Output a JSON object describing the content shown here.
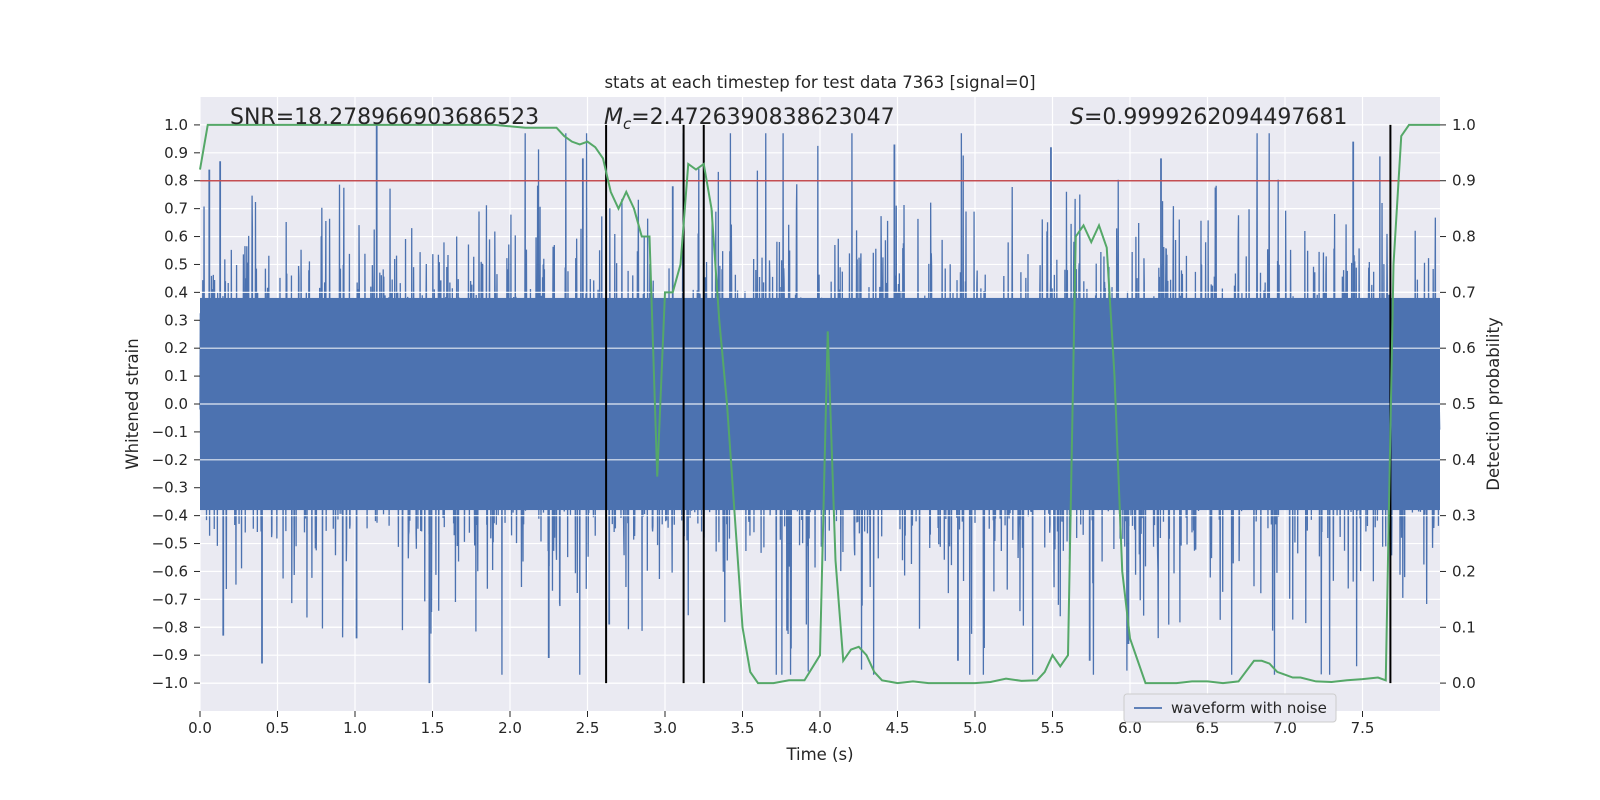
{
  "chart_data": {
    "type": "line",
    "title": "stats at each timestep for test data 7363 [signal=0]",
    "xlabel": "Time (s)",
    "ylabel": "Whitened strain",
    "y2label": "Detection probability",
    "xlim": [
      0.0,
      8.0
    ],
    "ylim": [
      -1.1,
      1.1
    ],
    "y2lim": [
      -0.05,
      1.05
    ],
    "grid": true,
    "x_ticks": [
      0.0,
      0.5,
      1.0,
      1.5,
      2.0,
      2.5,
      3.0,
      3.5,
      4.0,
      4.5,
      5.0,
      5.5,
      6.0,
      6.5,
      7.0,
      7.5
    ],
    "x_tick_labels": [
      "0.0",
      "0.5",
      "1.0",
      "1.5",
      "2.0",
      "2.5",
      "3.0",
      "3.5",
      "4.0",
      "4.5",
      "5.0",
      "5.5",
      "6.0",
      "6.5",
      "7.0",
      "7.5"
    ],
    "y_ticks": [
      1.0,
      0.9,
      0.8,
      0.7,
      0.6,
      0.5,
      0.4,
      0.3,
      0.2,
      0.1,
      0.0,
      -0.1,
      -0.2,
      -0.3,
      -0.4,
      -0.5,
      -0.6,
      -0.7,
      -0.8,
      -0.9,
      -1.0
    ],
    "y_tick_labels": [
      "1.0",
      "0.9",
      "0.8",
      "0.7",
      "0.6",
      "0.5",
      "0.4",
      "0.3",
      "0.2",
      "0.1",
      "0.0",
      "−0.1",
      "−0.2",
      "−0.3",
      "−0.4",
      "−0.5",
      "−0.6",
      "−0.7",
      "−0.8",
      "−0.9",
      "−1.0"
    ],
    "y2_ticks": [
      1.0,
      0.9,
      0.8,
      0.7,
      0.6,
      0.5,
      0.4,
      0.3,
      0.2,
      0.1,
      0.0
    ],
    "y2_tick_labels": [
      "1.0",
      "0.9",
      "0.8",
      "0.7",
      "0.6",
      "0.5",
      "0.4",
      "0.3",
      "0.2",
      "0.1",
      "0.0"
    ],
    "annotations": {
      "snr": "SNR=18.278966903686523",
      "mc_symbol": "M",
      "mc_sub": "c",
      "mc_value": "=2.4726390838623047",
      "s_symbol": "S",
      "s_value": "=0.9999262094497681"
    },
    "threshold": {
      "y2": 0.9,
      "color": "#c44e52"
    },
    "vertical_markers": [
      2.62,
      3.12,
      3.25,
      7.68
    ],
    "waveform": {
      "name": "waveform with noise",
      "color": "#4c72b0",
      "sample_rate_hz": 2048,
      "duration_s": 8.0,
      "note": "dense noise; core band roughly -0.4..0.4, spikes to about +/-1.0",
      "peak_spikes": [
        {
          "t": 1.14,
          "v": 1.0
        },
        {
          "t": 1.48,
          "v": -1.0
        },
        {
          "t": 0.4,
          "v": -0.93
        },
        {
          "t": 7.44,
          "v": 0.94
        },
        {
          "t": 4.48,
          "v": 0.93
        },
        {
          "t": 4.89,
          "v": -0.92
        },
        {
          "t": 0.06,
          "v": 0.84
        },
        {
          "t": 0.13,
          "v": 0.87
        },
        {
          "t": 2.64,
          "v": -0.79
        },
        {
          "t": 5.74,
          "v": -0.92
        },
        {
          "t": 5.99,
          "v": -0.86
        },
        {
          "t": 6.2,
          "v": 0.88
        },
        {
          "t": 2.47,
          "v": 0.88
        },
        {
          "t": 0.15,
          "v": -0.83
        },
        {
          "t": 1.01,
          "v": -0.84
        },
        {
          "t": 2.25,
          "v": -0.91
        },
        {
          "t": 3.05,
          "v": 0.78
        },
        {
          "t": 5.49,
          "v": 0.92
        }
      ]
    },
    "probability": {
      "name": "Detection probability",
      "color": "#55a868",
      "x": [
        0.0,
        0.05,
        0.1,
        0.3,
        0.5,
        0.7,
        0.9,
        1.1,
        1.3,
        1.5,
        1.7,
        1.9,
        2.1,
        2.2,
        2.3,
        2.35,
        2.4,
        2.45,
        2.5,
        2.55,
        2.6,
        2.65,
        2.7,
        2.75,
        2.8,
        2.85,
        2.9,
        2.95,
        3.0,
        3.05,
        3.1,
        3.15,
        3.2,
        3.25,
        3.3,
        3.35,
        3.4,
        3.45,
        3.5,
        3.55,
        3.6,
        3.7,
        3.8,
        3.9,
        4.0,
        4.05,
        4.1,
        4.15,
        4.2,
        4.25,
        4.3,
        4.35,
        4.4,
        4.5,
        4.6,
        4.7,
        4.8,
        4.9,
        5.0,
        5.1,
        5.2,
        5.3,
        5.4,
        5.45,
        5.5,
        5.55,
        5.6,
        5.65,
        5.7,
        5.75,
        5.8,
        5.85,
        5.9,
        5.95,
        6.0,
        6.05,
        6.1,
        6.15,
        6.2,
        6.3,
        6.4,
        6.5,
        6.6,
        6.7,
        6.8,
        6.85,
        6.9,
        6.95,
        7.0,
        7.05,
        7.1,
        7.2,
        7.3,
        7.4,
        7.5,
        7.6,
        7.65,
        7.7,
        7.75,
        7.8,
        7.9,
        8.0
      ],
      "y": [
        0.92,
        1.0,
        1.0,
        1.0,
        1.0,
        1.0,
        1.0,
        1.0,
        1.0,
        1.0,
        1.0,
        1.0,
        0.995,
        0.995,
        0.995,
        0.98,
        0.97,
        0.965,
        0.97,
        0.96,
        0.94,
        0.88,
        0.85,
        0.88,
        0.85,
        0.8,
        0.8,
        0.37,
        0.7,
        0.7,
        0.75,
        0.93,
        0.92,
        0.93,
        0.85,
        0.65,
        0.5,
        0.3,
        0.1,
        0.02,
        0.0,
        0.0,
        0.005,
        0.005,
        0.05,
        0.63,
        0.22,
        0.04,
        0.06,
        0.065,
        0.05,
        0.02,
        0.005,
        0.0,
        0.003,
        0.0,
        0.0,
        0.0,
        0.0,
        0.002,
        0.008,
        0.004,
        0.005,
        0.02,
        0.05,
        0.03,
        0.05,
        0.8,
        0.82,
        0.79,
        0.82,
        0.78,
        0.55,
        0.2,
        0.08,
        0.04,
        0.0,
        0.0,
        0.0,
        0.0,
        0.003,
        0.003,
        0.0,
        0.003,
        0.04,
        0.04,
        0.035,
        0.02,
        0.015,
        0.01,
        0.01,
        0.003,
        0.002,
        0.005,
        0.007,
        0.01,
        0.005,
        0.75,
        0.98,
        1.0,
        1.0,
        1.0
      ]
    },
    "legend": {
      "placement": "lower-right",
      "entries": [
        "waveform with noise"
      ]
    }
  }
}
